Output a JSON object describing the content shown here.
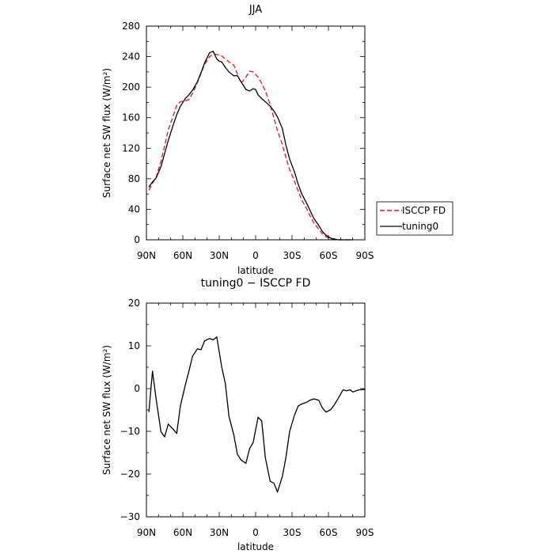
{
  "chart_data": [
    {
      "type": "line",
      "title": "JJA",
      "xlabel": "latitude",
      "ylabel": "Surface net SW flux (W/m²)",
      "xlim": [
        90,
        -90
      ],
      "ylim": [
        0,
        280
      ],
      "xticks": [
        90,
        60,
        30,
        0,
        -30,
        -60,
        -90
      ],
      "xtick_labels": [
        "90N",
        "60N",
        "30N",
        "0",
        "30S",
        "60S",
        "90S"
      ],
      "yticks": [
        0,
        40,
        80,
        120,
        160,
        200,
        240,
        280
      ],
      "ytick_labels": [
        "0",
        "40",
        "80",
        "120",
        "160",
        "200",
        "240",
        "280"
      ],
      "legend_position": "right",
      "series": [
        {
          "name": "ISCCP FD",
          "color": "#e8131b",
          "dash": true,
          "x": [
            88,
            85,
            82,
            78,
            75,
            72,
            68,
            65,
            62,
            58,
            55,
            52,
            48,
            45,
            42,
            38,
            35,
            32,
            28,
            25,
            22,
            18,
            15,
            12,
            8,
            5,
            2,
            -2,
            -5,
            -8,
            -12,
            -15,
            -18,
            -22,
            -25,
            -28,
            -32,
            -35,
            -38,
            -42,
            -45,
            -48,
            -52,
            -55,
            -58,
            -62,
            -65,
            -68,
            -70,
            -72,
            -75,
            -78,
            -80
          ],
          "y": [
            65,
            74,
            82,
            103,
            123,
            144,
            162,
            176,
            181,
            182,
            184,
            192,
            206,
            218,
            230,
            240,
            243,
            243,
            241,
            237,
            233,
            229,
            217,
            205,
            213,
            221,
            220,
            213,
            205,
            195,
            177,
            160,
            143,
            125,
            108,
            92,
            77,
            64,
            52,
            41,
            31,
            22,
            14,
            8,
            4,
            1,
            0,
            0,
            0,
            0,
            0,
            0,
            0
          ]
        },
        {
          "name": "tuning0",
          "color": "#000000",
          "dash": false,
          "x": [
            88,
            85,
            82,
            78,
            75,
            72,
            68,
            65,
            62,
            58,
            55,
            52,
            48,
            45,
            42,
            38,
            35,
            32,
            30,
            28,
            25,
            22,
            18,
            15,
            12,
            8,
            5,
            2,
            0,
            -2,
            -5,
            -8,
            -12,
            -15,
            -18,
            -22,
            -25,
            -28,
            -32,
            -35,
            -38,
            -42,
            -45,
            -48,
            -52,
            -55,
            -58,
            -62,
            -65,
            -68,
            -70,
            -72,
            -75,
            -78,
            -80
          ],
          "y": [
            69,
            76,
            81,
            96,
            113,
            130,
            150,
            164,
            175,
            185,
            190,
            196,
            207,
            219,
            232,
            245,
            247,
            237,
            234,
            233,
            226,
            220,
            215,
            215,
            207,
            197,
            195,
            198,
            197,
            190,
            185,
            181,
            175,
            169,
            161,
            146,
            124,
            106,
            89,
            73,
            60,
            48,
            38,
            28,
            19,
            11,
            6,
            2,
            1,
            0,
            0,
            0,
            0,
            0,
            0
          ]
        }
      ]
    },
    {
      "type": "line",
      "title": "tuning0 − ISCCP FD",
      "xlabel": "latitude",
      "ylabel": "Surface net SW flux (W/m²)",
      "xlim": [
        90,
        -90
      ],
      "ylim": [
        -30,
        20
      ],
      "xticks": [
        90,
        60,
        30,
        0,
        -30,
        -60,
        -90
      ],
      "xtick_labels": [
        "90N",
        "60N",
        "30N",
        "0",
        "30S",
        "60S",
        "90S"
      ],
      "yticks": [
        -30,
        -20,
        -10,
        0,
        10,
        20
      ],
      "ytick_labels": [
        "−30",
        "−20",
        "−10",
        "0",
        "10",
        "20"
      ],
      "series": [
        {
          "color": "#000000",
          "dash": false,
          "x": [
            88,
            85,
            82,
            78,
            75,
            72,
            68,
            65,
            62,
            58,
            55,
            52,
            48,
            45,
            42,
            38,
            35,
            32,
            28,
            25,
            22,
            18,
            15,
            12,
            8,
            5,
            2,
            -2,
            -5,
            -8,
            -12,
            -15,
            -18,
            -22,
            -25,
            -28,
            -32,
            -35,
            -38,
            -42,
            -45,
            -48,
            -52,
            -55,
            -58,
            -62,
            -65,
            -68,
            -72,
            -75,
            -78,
            -80,
            -85,
            -90
          ],
          "y": [
            -5.5,
            4.1,
            -2.5,
            -10.1,
            -11.3,
            -8.3,
            -9.5,
            -10.5,
            -4.1,
            0.8,
            4.1,
            7.6,
            9.3,
            9.1,
            11.2,
            11.7,
            11.4,
            12.1,
            5.1,
            1.2,
            -6.5,
            -10.8,
            -15.4,
            -16.7,
            -17.5,
            -14.1,
            -12.6,
            -6.7,
            -7.6,
            -16.2,
            -21.7,
            -22.1,
            -24.2,
            -20.6,
            -16.1,
            -10.1,
            -6.2,
            -4.1,
            -3.6,
            -3.2,
            -2.7,
            -2.4,
            -2.7,
            -4.5,
            -5.5,
            -4.9,
            -3.7,
            -2.3,
            -0.3,
            -0.5,
            -0.3,
            -0.8,
            -0.3,
            -0.2
          ]
        }
      ]
    }
  ]
}
